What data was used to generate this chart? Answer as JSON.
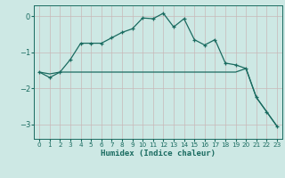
{
  "xlabel": "Humidex (Indice chaleur)",
  "ylabel": "",
  "bg_color": "#cde8e4",
  "grid_color": "#c8b8b8",
  "line_color": "#1a6b60",
  "xlim": [
    -0.5,
    23.5
  ],
  "ylim": [
    -3.4,
    0.3
  ],
  "yticks": [
    0,
    -1,
    -2,
    -3
  ],
  "xticks": [
    0,
    1,
    2,
    3,
    4,
    5,
    6,
    7,
    8,
    9,
    10,
    11,
    12,
    13,
    14,
    15,
    16,
    17,
    18,
    19,
    20,
    21,
    22,
    23
  ],
  "line1_x": [
    0,
    1,
    2,
    3,
    4,
    5,
    6,
    7,
    8,
    9,
    10,
    11,
    12,
    13,
    14,
    15,
    16,
    17,
    18,
    19,
    20,
    21,
    22,
    23
  ],
  "line1_y": [
    -1.55,
    -1.7,
    -1.55,
    -1.2,
    -0.75,
    -0.75,
    -0.75,
    -0.6,
    -0.45,
    -0.35,
    -0.05,
    -0.07,
    0.08,
    -0.3,
    -0.07,
    -0.65,
    -0.8,
    -0.65,
    -1.3,
    -1.35,
    -1.45,
    -2.25,
    -2.65,
    -3.05
  ],
  "line2_x": [
    0,
    1,
    2,
    3,
    4,
    5,
    6,
    7,
    8,
    9,
    10,
    11,
    12,
    13,
    14,
    15,
    16,
    17,
    18,
    19,
    20,
    21,
    22,
    23
  ],
  "line2_y": [
    -1.55,
    -1.6,
    -1.55,
    -1.55,
    -1.55,
    -1.55,
    -1.55,
    -1.55,
    -1.55,
    -1.55,
    -1.55,
    -1.55,
    -1.55,
    -1.55,
    -1.55,
    -1.55,
    -1.55,
    -1.55,
    -1.55,
    -1.55,
    -1.45,
    -2.25,
    -2.65,
    -3.05
  ]
}
